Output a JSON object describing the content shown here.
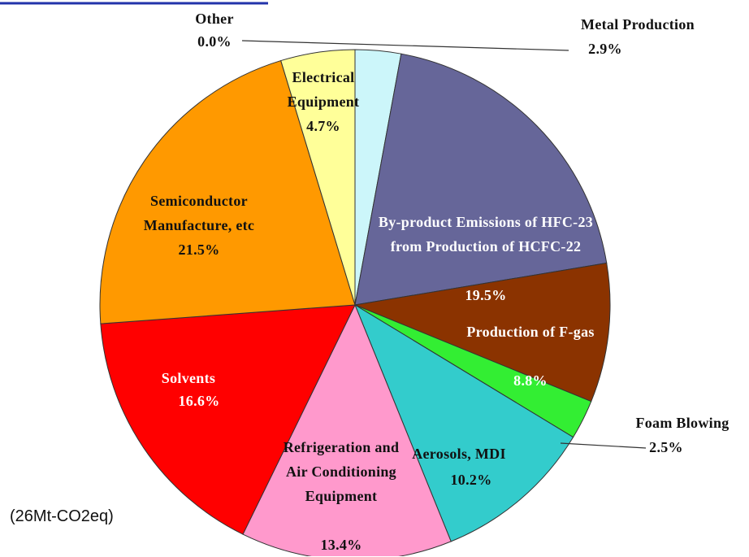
{
  "chart_data": {
    "type": "pie",
    "categories": [
      "Other",
      "Metal Production",
      "By-product Emissions of HFC-23 from Production of HCFC-22",
      "Production of F-gas",
      "Foam Blowing",
      "Aerosols, MDI",
      "Refrigeration and Air Conditioning Equipment",
      "Solvents",
      "Semiconductor Manufacture, etc",
      "Electrical Equipment"
    ],
    "values": [
      0.0,
      2.9,
      19.5,
      8.8,
      2.5,
      10.2,
      13.4,
      16.6,
      21.5,
      4.7
    ],
    "value_labels": [
      "0.0%",
      "2.9%",
      "19.5%",
      "8.8%",
      "2.5%",
      "10.2%",
      "13.4%",
      "16.6%",
      "21.5%",
      "4.7%"
    ],
    "colors": [
      "#ffffff",
      "#ccf6fa",
      "#666699",
      "#8b3300",
      "#33ee33",
      "#33cccc",
      "#ff99cc",
      "#ff0000",
      "#ff9900",
      "#ffff99"
    ],
    "label_colors": [
      "#111111",
      "#111111",
      "#ffffff",
      "#ffffff",
      "#111111",
      "#111111",
      "#111111",
      "#ffffff",
      "#111111",
      "#111111"
    ],
    "annotation": "(26Mt-CO2eq)"
  }
}
